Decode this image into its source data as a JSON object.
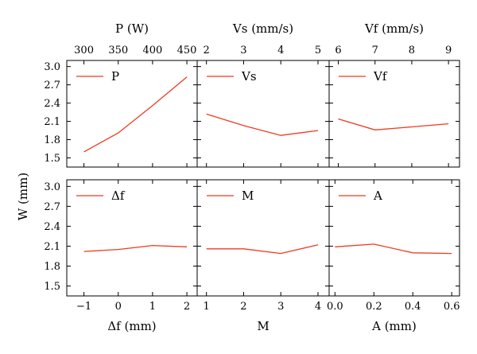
{
  "figure": {
    "shared_ylabel": "W (mm)",
    "line_color": "#ee3b1f"
  },
  "chart_data": [
    {
      "type": "line",
      "panel": "top-left",
      "x": [
        300,
        350,
        400,
        450
      ],
      "x_ticks": [
        300,
        350,
        400,
        450
      ],
      "xlabel": "P (W)",
      "xlabel_position": "top",
      "xlim": [
        275,
        465
      ],
      "ylim": [
        1.35,
        3.1
      ],
      "y_ticks": [
        1.5,
        1.8,
        2.1,
        2.4,
        2.7,
        3.0
      ],
      "series": [
        {
          "name": "P",
          "values": [
            1.6,
            1.91,
            2.36,
            2.83
          ]
        }
      ],
      "legend": "top-left",
      "grid": false
    },
    {
      "type": "line",
      "panel": "top-middle",
      "x": [
        2,
        3,
        4,
        5
      ],
      "x_ticks": [
        2,
        3,
        4,
        5
      ],
      "xlabel": "Vs (mm/s)",
      "xlabel_position": "top",
      "xlim": [
        1.75,
        5.3
      ],
      "ylim": [
        1.35,
        3.1
      ],
      "series": [
        {
          "name": "Vs",
          "values": [
            2.22,
            2.03,
            1.87,
            1.95
          ]
        }
      ],
      "legend": "top-left",
      "grid": false
    },
    {
      "type": "line",
      "panel": "top-right",
      "x": [
        6,
        7,
        8,
        9
      ],
      "x_ticks": [
        6,
        7,
        8,
        9
      ],
      "xlabel": "Vf (mm/s)",
      "xlabel_position": "top",
      "xlim": [
        5.75,
        9.3
      ],
      "ylim": [
        1.35,
        3.1
      ],
      "series": [
        {
          "name": "Vf",
          "values": [
            2.14,
            1.96,
            2.01,
            2.06
          ]
        }
      ],
      "legend": "top-left",
      "grid": false
    },
    {
      "type": "line",
      "panel": "bottom-left",
      "x": [
        -1,
        0,
        1,
        2
      ],
      "x_ticks": [
        -1,
        0,
        1,
        2
      ],
      "xlabel": "Δf (mm)",
      "xlabel_position": "bottom",
      "xlim": [
        -1.5,
        2.3
      ],
      "ylim": [
        1.35,
        3.1
      ],
      "y_ticks": [
        1.5,
        1.8,
        2.1,
        2.4,
        2.7,
        3.0
      ],
      "series": [
        {
          "name": "Δf",
          "values": [
            2.02,
            2.05,
            2.11,
            2.09
          ]
        }
      ],
      "legend": "top-left",
      "grid": false
    },
    {
      "type": "line",
      "panel": "bottom-middle",
      "x": [
        1,
        2,
        3,
        4
      ],
      "x_ticks": [
        1,
        2,
        3,
        4
      ],
      "xlabel": "M",
      "xlabel_position": "bottom",
      "xlim": [
        0.75,
        4.3
      ],
      "ylim": [
        1.35,
        3.1
      ],
      "series": [
        {
          "name": "M",
          "values": [
            2.06,
            2.06,
            1.99,
            2.12
          ]
        }
      ],
      "legend": "top-left",
      "grid": false
    },
    {
      "type": "line",
      "panel": "bottom-right",
      "x": [
        0.0,
        0.2,
        0.4,
        0.6
      ],
      "x_ticks": [
        0.0,
        0.2,
        0.4,
        0.6
      ],
      "x_tick_format": "1dp",
      "xlabel": "A (mm)",
      "xlabel_position": "bottom",
      "xlim": [
        -0.03,
        0.64
      ],
      "ylim": [
        1.35,
        3.1
      ],
      "series": [
        {
          "name": "A",
          "values": [
            2.09,
            2.13,
            2.0,
            1.99
          ]
        }
      ],
      "legend": "top-left",
      "grid": false
    }
  ]
}
